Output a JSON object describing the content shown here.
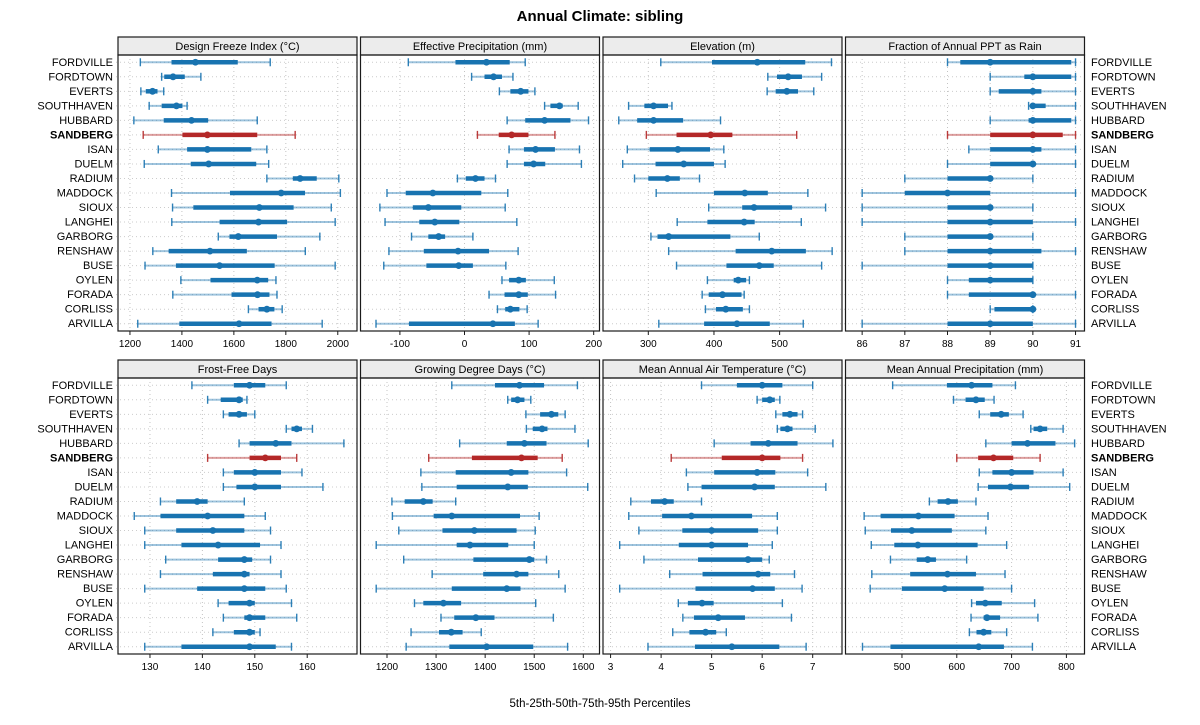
{
  "title": "Annual Climate: sibling",
  "caption": "5th-25th-50th-75th-95th Percentiles",
  "percentiles": [
    "5th",
    "25th",
    "50th",
    "75th",
    "95th"
  ],
  "highlight_station": "SANDBERG",
  "colors": {
    "series": "#1873b0",
    "series_light": "rgba(24,115,176,0.42)",
    "highlight": "#b42828",
    "highlight_light": "rgba(180,40,40,0.45)",
    "strip_bg": "#ececec",
    "grid": "#c4c4c4",
    "row_grid": "#cccccc",
    "border": "#1a1a1a"
  },
  "stations": [
    "FORDVILLE",
    "FORDTOWN",
    "EVERTS",
    "SOUTHHAVEN",
    "HUBBARD",
    "SANDBERG",
    "ISAN",
    "DUELM",
    "RADIUM",
    "MADDOCK",
    "SIOUX",
    "LANGHEI",
    "GARBORG",
    "RENSHAW",
    "BUSE",
    "OYLEN",
    "FORADA",
    "CORLISS",
    "ARVILLA"
  ],
  "chart_data": [
    {
      "type": "dot-interval",
      "title": "Design Freeze Index (°C)",
      "xlim": [
        1154,
        2074
      ],
      "ticks": [
        1200,
        1400,
        1600,
        1800,
        2000
      ],
      "values": [
        [
          1240,
          1360,
          1452,
          1615,
          1740
        ],
        [
          1322,
          1332,
          1366,
          1411,
          1473
        ],
        [
          1242,
          1261,
          1287,
          1306,
          1330
        ],
        [
          1274,
          1322,
          1379,
          1402,
          1420
        ],
        [
          1215,
          1330,
          1437,
          1501,
          1690
        ],
        [
          1251,
          1402,
          1498,
          1690,
          1836
        ],
        [
          1309,
          1420,
          1498,
          1667,
          1727
        ],
        [
          1255,
          1434,
          1503,
          1686,
          1734
        ],
        [
          1727,
          1827,
          1855,
          1919,
          2004
        ],
        [
          1360,
          1585,
          1782,
          1874,
          2010
        ],
        [
          1364,
          1444,
          1698,
          1830,
          1975
        ],
        [
          1361,
          1545,
          1695,
          1805,
          1990
        ],
        [
          1540,
          1583,
          1617,
          1766,
          1931
        ],
        [
          1288,
          1349,
          1508,
          1650,
          1875
        ],
        [
          1258,
          1377,
          1545,
          1757,
          1990
        ],
        [
          1396,
          1510,
          1690,
          1732,
          1762
        ],
        [
          1365,
          1591,
          1691,
          1737,
          1766
        ],
        [
          1656,
          1695,
          1727,
          1756,
          1786
        ],
        [
          1230,
          1390,
          1620,
          1745,
          1940
        ]
      ]
    },
    {
      "type": "dot-interval",
      "title": "Effective Precipitation (mm)",
      "xlim": [
        -161,
        209
      ],
      "ticks": [
        -100,
        0,
        100,
        200
      ],
      "values": [
        [
          -87,
          -14,
          34,
          70,
          94
        ],
        [
          11,
          31,
          45,
          58,
          75
        ],
        [
          54,
          71,
          87,
          99,
          109
        ],
        [
          124,
          133,
          147,
          152,
          176
        ],
        [
          66,
          94,
          124,
          164,
          192
        ],
        [
          20,
          53,
          73,
          99,
          140
        ],
        [
          69,
          92,
          110,
          140,
          178
        ],
        [
          66,
          92,
          107,
          125,
          181
        ],
        [
          -11,
          2,
          17,
          31,
          48
        ],
        [
          -120,
          -91,
          -49,
          26,
          67
        ],
        [
          -131,
          -80,
          -56,
          -5,
          63
        ],
        [
          -123,
          -70,
          -46,
          -8,
          81
        ],
        [
          -82,
          -56,
          -40,
          -30,
          13
        ],
        [
          -117,
          -63,
          -10,
          38,
          83
        ],
        [
          -125,
          -59,
          -9,
          13,
          64
        ],
        [
          58,
          69,
          84,
          95,
          139
        ],
        [
          38,
          62,
          84,
          98,
          141
        ],
        [
          51,
          63,
          71,
          85,
          97
        ],
        [
          -137,
          -86,
          44,
          78,
          114
        ]
      ]
    },
    {
      "type": "dot-interval",
      "title": "Elevation (m)",
      "xlim": [
        231,
        595
      ],
      "ticks": [
        300,
        400,
        500
      ],
      "values": [
        [
          319,
          397,
          466,
          539,
          579
        ],
        [
          482,
          496,
          513,
          534,
          564
        ],
        [
          481,
          494,
          511,
          528,
          552
        ],
        [
          270,
          294,
          308,
          330,
          336
        ],
        [
          255,
          283,
          308,
          353,
          410
        ],
        [
          297,
          343,
          395,
          428,
          526
        ],
        [
          268,
          302,
          345,
          394,
          415
        ],
        [
          261,
          311,
          354,
          400,
          417
        ],
        [
          279,
          300,
          329,
          348,
          378
        ],
        [
          312,
          400,
          447,
          482,
          543
        ],
        [
          392,
          443,
          461,
          519,
          570
        ],
        [
          344,
          390,
          446,
          462,
          533
        ],
        [
          304,
          314,
          331,
          425,
          469
        ],
        [
          331,
          433,
          488,
          540,
          580
        ],
        [
          343,
          419,
          469,
          491,
          564
        ],
        [
          390,
          430,
          437,
          449,
          454
        ],
        [
          382,
          392,
          413,
          442,
          446
        ],
        [
          387,
          403,
          418,
          444,
          454
        ],
        [
          316,
          385,
          435,
          485,
          536
        ]
      ]
    },
    {
      "type": "dot-interval",
      "title": "Fraction of Annual PPT as Rain",
      "xlim": [
        85.61,
        91.21
      ],
      "ticks": [
        86,
        87,
        88,
        89,
        90,
        91
      ],
      "values": [
        [
          88,
          88.3,
          89,
          90.9,
          91
        ],
        [
          89,
          89.8,
          90,
          90.9,
          91
        ],
        [
          89,
          89.2,
          90,
          90.2,
          91
        ],
        [
          89.9,
          90,
          90,
          90.3,
          91
        ],
        [
          89,
          89.9,
          90,
          90.9,
          91
        ],
        [
          88,
          89,
          90,
          90.7,
          91
        ],
        [
          88.5,
          89,
          90,
          90.2,
          91
        ],
        [
          88,
          89,
          90,
          90,
          91
        ],
        [
          87,
          88,
          89,
          89,
          90
        ],
        [
          86,
          87,
          88,
          89,
          91
        ],
        [
          86,
          88,
          89,
          89,
          90
        ],
        [
          86,
          88,
          89,
          90,
          91
        ],
        [
          87,
          88,
          89,
          89,
          90
        ],
        [
          87,
          88,
          89,
          90.2,
          91
        ],
        [
          86,
          88,
          89,
          90,
          90
        ],
        [
          88,
          88.5,
          89,
          90,
          90
        ],
        [
          88,
          88.5,
          90,
          90,
          91
        ],
        [
          89,
          89.1,
          90,
          90,
          90
        ],
        [
          86,
          88,
          89,
          90,
          91
        ]
      ]
    },
    {
      "type": "dot-interval",
      "title": "Frost-Free Days",
      "xlim": [
        123.9,
        169.5
      ],
      "ticks": [
        130,
        140,
        150,
        160
      ],
      "values": [
        [
          138,
          146,
          149,
          152,
          156
        ],
        [
          141,
          143.5,
          147,
          147.7,
          148.5
        ],
        [
          144,
          145,
          147,
          148.5,
          150
        ],
        [
          156,
          157,
          158,
          159,
          161
        ],
        [
          147,
          149,
          154,
          157,
          167
        ],
        [
          141,
          149,
          152,
          155,
          158
        ],
        [
          144,
          146,
          150,
          155,
          159
        ],
        [
          144,
          146.5,
          150,
          155,
          163
        ],
        [
          132,
          135,
          139,
          141,
          148
        ],
        [
          127,
          132,
          141,
          148,
          152
        ],
        [
          129,
          135,
          142,
          148,
          153
        ],
        [
          129,
          136,
          143,
          151,
          155
        ],
        [
          133,
          143,
          148,
          149.5,
          153
        ],
        [
          132,
          142,
          148,
          149,
          155
        ],
        [
          129,
          139,
          148,
          152,
          156
        ],
        [
          143,
          145,
          149,
          150,
          157
        ],
        [
          144,
          148,
          149,
          152,
          158
        ],
        [
          142,
          146,
          149,
          150,
          151
        ],
        [
          129,
          136,
          149,
          154,
          157
        ]
      ]
    },
    {
      "type": "dot-interval",
      "title": "Growing Degree Days (°C)",
      "xlim": [
        1146,
        1633
      ],
      "ticks": [
        1200,
        1300,
        1400,
        1500,
        1600
      ],
      "values": [
        [
          1332,
          1420,
          1470,
          1520,
          1588
        ],
        [
          1446,
          1453,
          1466,
          1480,
          1493
        ],
        [
          1483,
          1512,
          1535,
          1549,
          1563
        ],
        [
          1484,
          1497,
          1516,
          1527,
          1583
        ],
        [
          1348,
          1444,
          1480,
          1525,
          1610
        ],
        [
          1285,
          1373,
          1474,
          1507,
          1557
        ],
        [
          1269,
          1340,
          1453,
          1488,
          1566
        ],
        [
          1271,
          1342,
          1446,
          1487,
          1609
        ],
        [
          1210,
          1236,
          1274,
          1293,
          1340
        ],
        [
          1211,
          1295,
          1332,
          1471,
          1510
        ],
        [
          1224,
          1313,
          1378,
          1464,
          1502
        ],
        [
          1178,
          1342,
          1369,
          1447,
          1500
        ],
        [
          1234,
          1376,
          1490,
          1500,
          1525
        ],
        [
          1292,
          1396,
          1464,
          1488,
          1550
        ],
        [
          1178,
          1332,
          1444,
          1472,
          1563
        ],
        [
          1256,
          1274,
          1315,
          1351,
          1503
        ],
        [
          1310,
          1337,
          1381,
          1419,
          1539
        ],
        [
          1249,
          1306,
          1331,
          1354,
          1392
        ],
        [
          1239,
          1327,
          1403,
          1498,
          1568
        ]
      ]
    },
    {
      "type": "dot-interval",
      "title": "Mean Annual Air Temperature (°C)",
      "xlim": [
        2.85,
        7.58
      ],
      "ticks": [
        3,
        4,
        5,
        6,
        7
      ],
      "values": [
        [
          4.8,
          5.5,
          6.0,
          6.4,
          7.0
        ],
        [
          5.9,
          6.0,
          6.15,
          6.25,
          6.35
        ],
        [
          6.27,
          6.4,
          6.55,
          6.7,
          6.8
        ],
        [
          6.3,
          6.36,
          6.5,
          6.6,
          7.05
        ],
        [
          5.05,
          5.77,
          6.12,
          6.7,
          7.4
        ],
        [
          4.2,
          5.2,
          6.0,
          6.36,
          6.8
        ],
        [
          4.5,
          5.05,
          5.9,
          6.26,
          6.9
        ],
        [
          4.53,
          4.8,
          5.85,
          6.25,
          7.26
        ],
        [
          3.4,
          3.8,
          4.07,
          4.25,
          4.8
        ],
        [
          3.36,
          4.02,
          4.6,
          5.8,
          6.3
        ],
        [
          3.56,
          4.42,
          5.0,
          5.92,
          6.3
        ],
        [
          3.18,
          4.35,
          5.0,
          5.72,
          6.2
        ],
        [
          3.66,
          4.73,
          5.72,
          6.0,
          6.14
        ],
        [
          4.17,
          4.82,
          5.92,
          6.16,
          6.64
        ],
        [
          3.18,
          4.68,
          5.81,
          6.25,
          6.79
        ],
        [
          4.34,
          4.53,
          4.81,
          5.04,
          6.4
        ],
        [
          4.43,
          4.65,
          5.13,
          5.66,
          6.58
        ],
        [
          4.23,
          4.56,
          4.88,
          5.09,
          5.29
        ],
        [
          3.74,
          4.67,
          5.4,
          6.34,
          6.87
        ]
      ]
    },
    {
      "type": "dot-interval",
      "title": "Mean Annual Precipitation (mm)",
      "xlim": [
        397,
        833
      ],
      "ticks": [
        500,
        600,
        700,
        800
      ],
      "values": [
        [
          483,
          582,
          627,
          665,
          707
        ],
        [
          594,
          616,
          635,
          651,
          668
        ],
        [
          641,
          661,
          681,
          695,
          721
        ],
        [
          735,
          740,
          752,
          765,
          794
        ],
        [
          653,
          700,
          729,
          780,
          815
        ],
        [
          600,
          639,
          667,
          703,
          752
        ],
        [
          641,
          665,
          700,
          740,
          794
        ],
        [
          639,
          657,
          698,
          732,
          806
        ],
        [
          550,
          565,
          584,
          602,
          635
        ],
        [
          431,
          461,
          530,
          596,
          657
        ],
        [
          433,
          480,
          518,
          591,
          653
        ],
        [
          444,
          486,
          529,
          638,
          691
        ],
        [
          479,
          527,
          547,
          562,
          618
        ],
        [
          445,
          515,
          583,
          635,
          688
        ],
        [
          442,
          500,
          578,
          649,
          700
        ],
        [
          627,
          635,
          652,
          682,
          742
        ],
        [
          626,
          649,
          655,
          679,
          748
        ],
        [
          623,
          636,
          649,
          663,
          691
        ],
        [
          428,
          479,
          640,
          686,
          738
        ]
      ]
    }
  ]
}
